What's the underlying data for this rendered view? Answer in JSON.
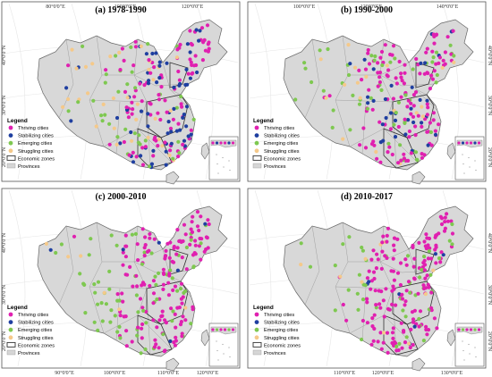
{
  "figure": {
    "panels": [
      {
        "title": "(a) 1978-1990",
        "mix": [
          0.34,
          0.27,
          0.18,
          0.21
        ]
      },
      {
        "title": "(b) 1990-2000",
        "mix": [
          0.48,
          0.14,
          0.24,
          0.14
        ]
      },
      {
        "title": "(c) 2000-2010",
        "mix": [
          0.57,
          0.03,
          0.37,
          0.03
        ]
      },
      {
        "title": "(d) 2010-2017",
        "mix": [
          0.58,
          0.04,
          0.33,
          0.05
        ]
      }
    ],
    "longitude_ticks_top": [
      "80°0'0\"E",
      "100°0'0\"E",
      "120°0'0\"E",
      "140°0'0\"E"
    ],
    "longitude_ticks_bottom": [
      "90°0'0\"E",
      "100°0'0\"E",
      "110°0'0\"E",
      "120°0'0\"E",
      "130°0'0\"E"
    ],
    "latitude_ticks": [
      "40°0'0\"N",
      "30°0'0\"N",
      "20°0'0\"N"
    ],
    "legend": {
      "title": "Legend",
      "items": [
        {
          "label": "Thriving cities",
          "color": "#e020b0",
          "kind": "dot"
        },
        {
          "label": "Stabilizing cities",
          "color": "#1f3fa0",
          "kind": "dot"
        },
        {
          "label": "Emerging cities",
          "color": "#7ec850",
          "kind": "dot"
        },
        {
          "label": "Struggling cities",
          "color": "#f5c98a",
          "kind": "dot"
        },
        {
          "label": "Economic zones",
          "color": "#333333",
          "kind": "outline"
        },
        {
          "label": "Provinces",
          "color": "#d6d6d6",
          "kind": "fill"
        }
      ]
    },
    "colors": {
      "land": "#d8d8d8",
      "border": "#666666",
      "frame": "#555555"
    }
  }
}
